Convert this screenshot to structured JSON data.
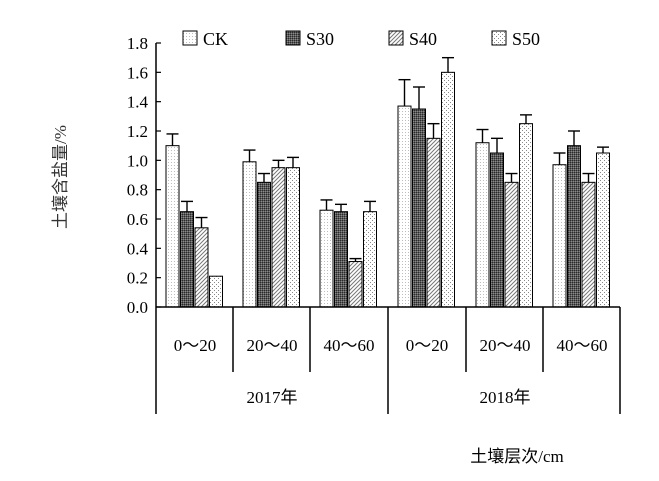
{
  "chart_data": {
    "type": "bar",
    "ylabel": "土壤含盐量/%",
    "xlabel": "土壤层次/cm",
    "ylim": [
      0,
      1.8
    ],
    "yticks": [
      "0.0",
      "0.2",
      "0.4",
      "0.6",
      "0.8",
      "1.0",
      "1.2",
      "1.4",
      "1.6",
      "1.8"
    ],
    "years": [
      "2017年",
      "2018年"
    ],
    "categories": [
      "0～20",
      "20～40",
      "40～60",
      "0～20",
      "20～40",
      "40～60"
    ],
    "series": [
      {
        "name": "CK",
        "values": [
          1.1,
          0.99,
          0.66,
          1.37,
          1.12,
          0.97
        ],
        "errors": [
          0.08,
          0.08,
          0.07,
          0.18,
          0.09,
          0.08
        ]
      },
      {
        "name": "S30",
        "values": [
          0.65,
          0.85,
          0.65,
          1.35,
          1.05,
          1.1
        ],
        "errors": [
          0.07,
          0.06,
          0.05,
          0.15,
          0.1,
          0.1
        ]
      },
      {
        "name": "S40",
        "values": [
          0.54,
          0.95,
          0.31,
          1.15,
          0.85,
          0.85
        ],
        "errors": [
          0.07,
          0.05,
          0.02,
          0.1,
          0.06,
          0.06
        ]
      },
      {
        "name": "S50",
        "values": [
          0.21,
          0.95,
          0.65,
          1.6,
          1.25,
          1.05
        ],
        "errors": [
          0.0,
          0.07,
          0.07,
          0.1,
          0.06,
          0.04
        ]
      }
    ],
    "legend_position": "top",
    "grid": false
  }
}
